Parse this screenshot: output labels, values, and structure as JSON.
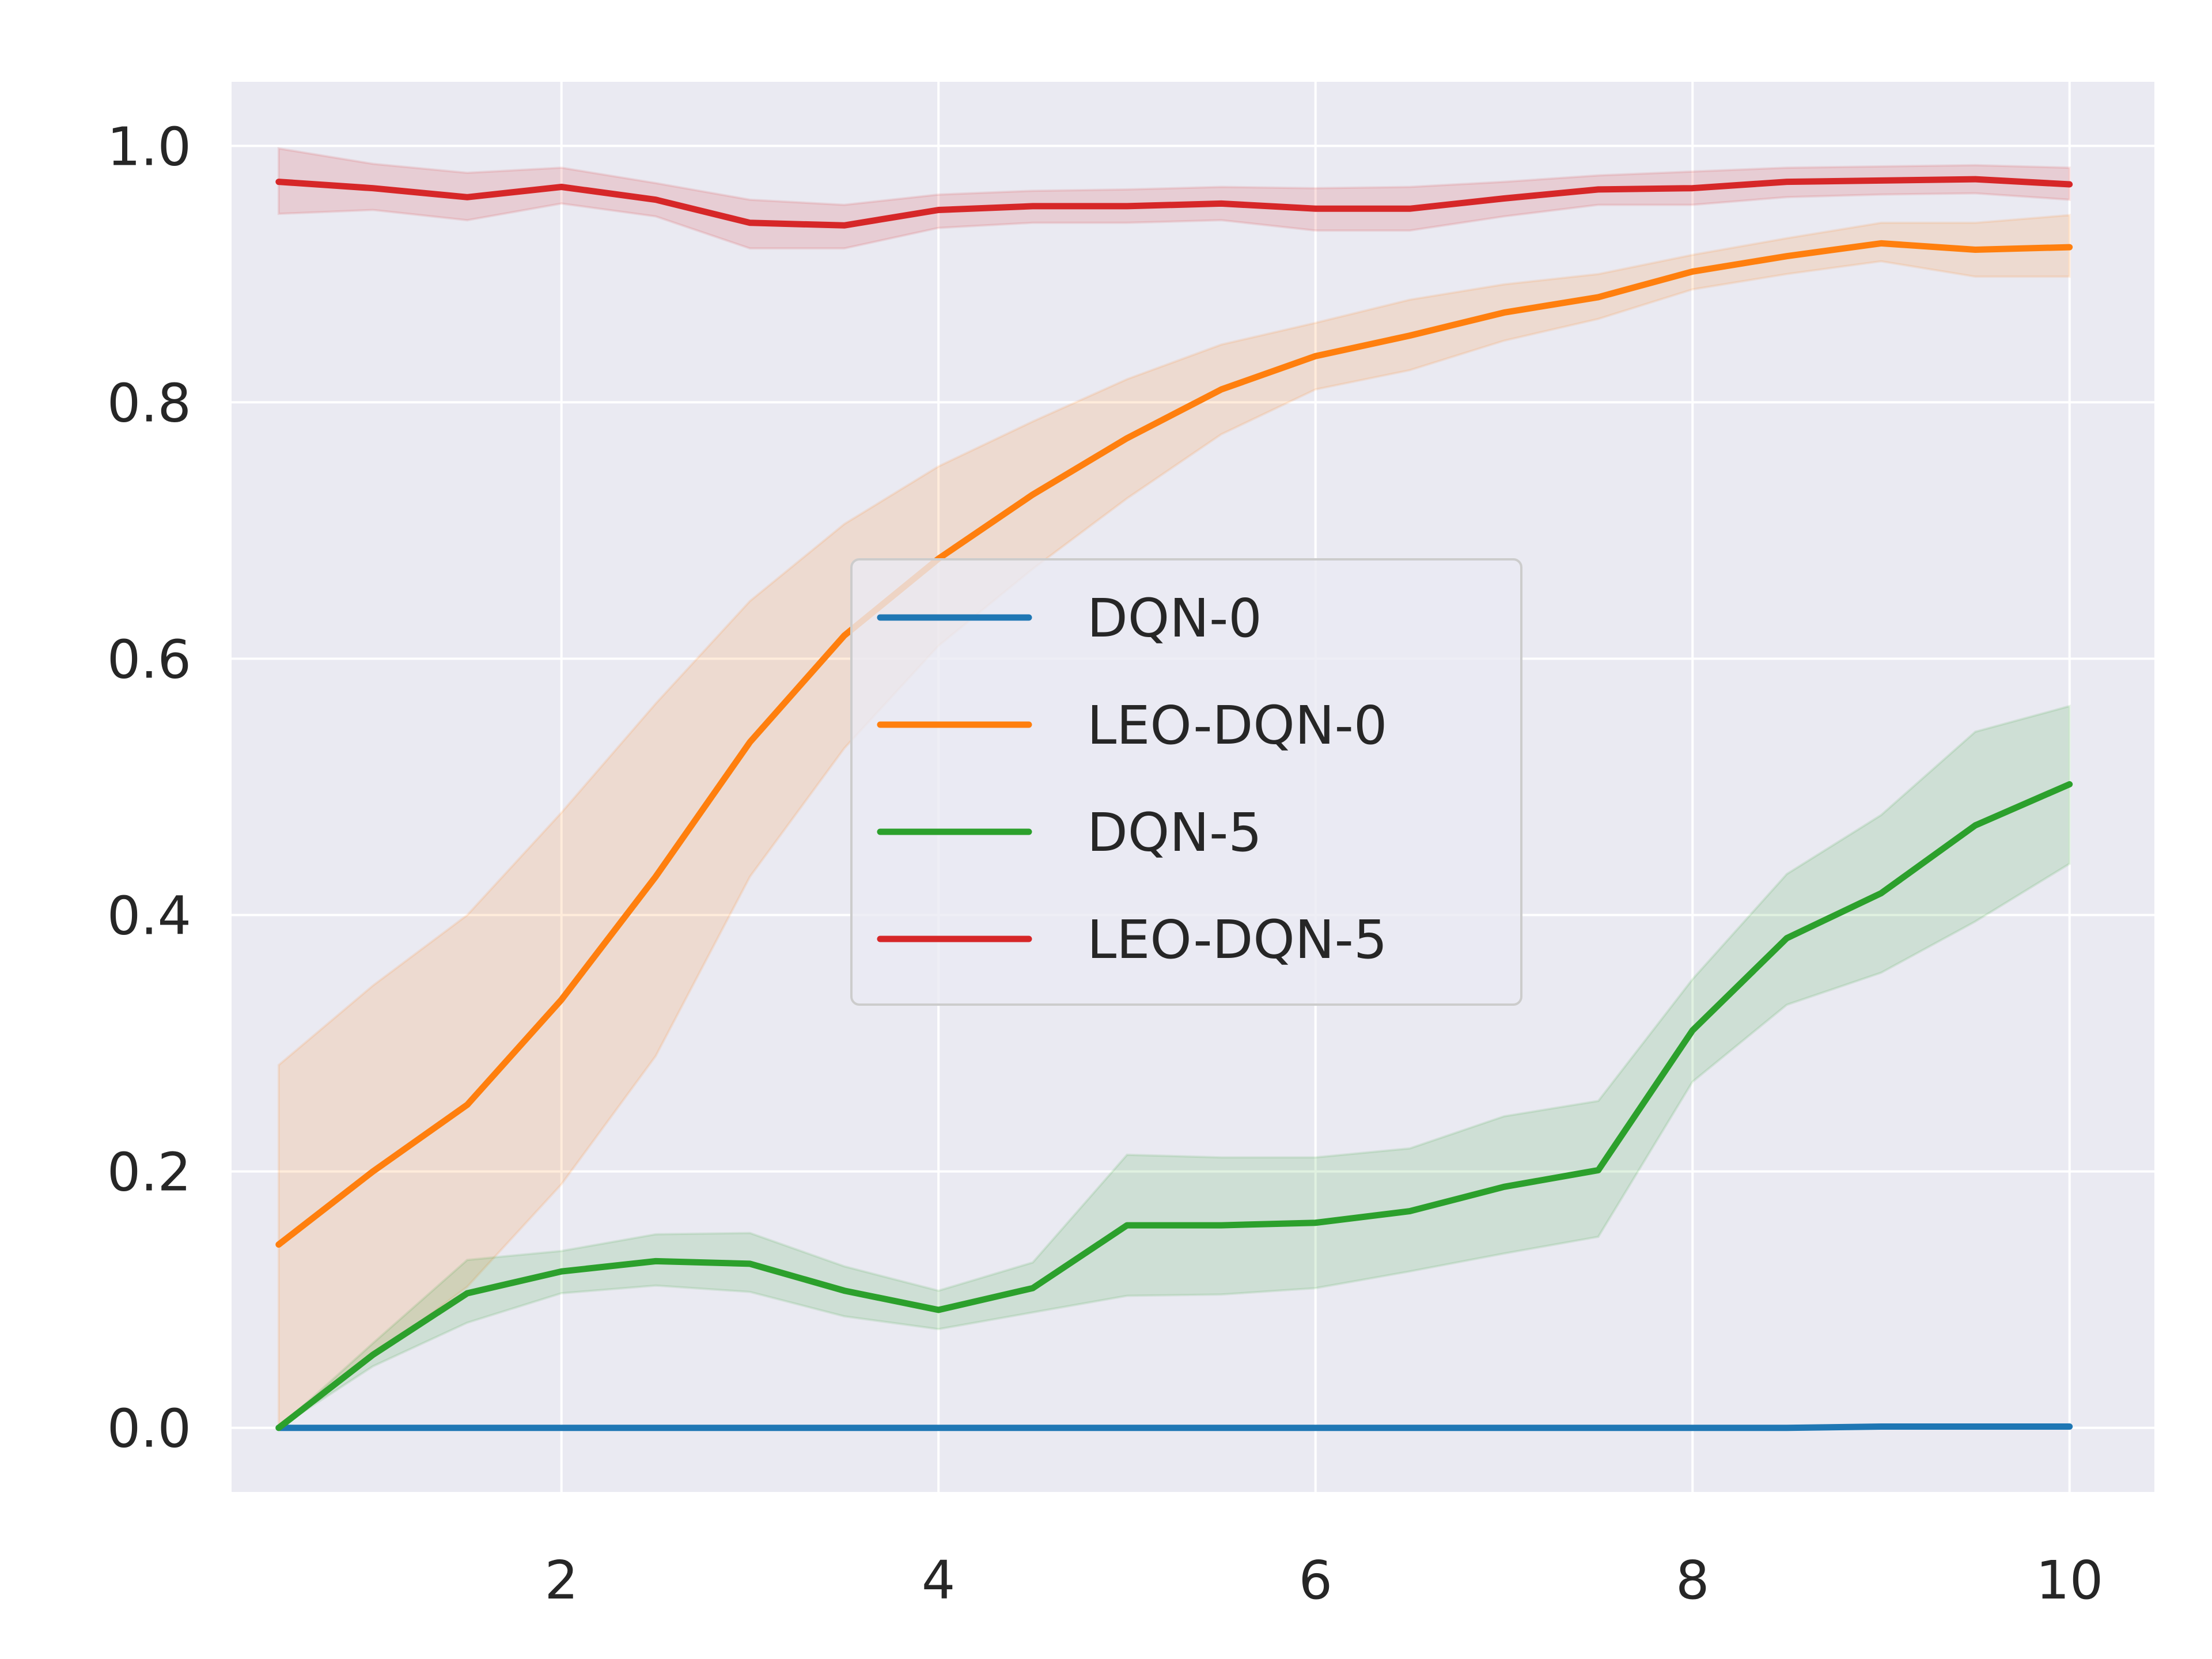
{
  "chart_data": {
    "type": "line",
    "title": "",
    "xlabel": "",
    "ylabel": "",
    "xlim": [
      0.25,
      10.45
    ],
    "ylim": [
      -0.05,
      1.05
    ],
    "xticks": [
      2,
      4,
      6,
      8,
      10
    ],
    "xtick_labels": [
      "2",
      "4",
      "6",
      "8",
      "10"
    ],
    "yticks": [
      0.0,
      0.2,
      0.4,
      0.6,
      0.8,
      1.0
    ],
    "ytick_labels": [
      "0.0",
      "0.2",
      "0.4",
      "0.6",
      "0.8",
      "1.0"
    ],
    "grid": true,
    "legend_position": "center",
    "background": "#eaeaf2",
    "x": [
      0.5,
      1.0,
      1.5,
      2.0,
      2.5,
      3.0,
      3.5,
      4.0,
      4.5,
      5.0,
      5.5,
      6.0,
      6.5,
      7.0,
      7.5,
      8.0,
      8.5,
      9.0,
      9.5,
      10.0
    ],
    "series": [
      {
        "name": "DQN-0",
        "color": "#1f77b4",
        "values": [
          0,
          0,
          0,
          0,
          0,
          0,
          0,
          0,
          0,
          0,
          0,
          0,
          0,
          0,
          0,
          0,
          0,
          0.001,
          0.001,
          0.001
        ],
        "lower": [
          0,
          0,
          0,
          0,
          0,
          0,
          0,
          0,
          0,
          0,
          0,
          0,
          0,
          0,
          0,
          0,
          0,
          0,
          0,
          0
        ],
        "upper": [
          0,
          0,
          0,
          0,
          0,
          0,
          0,
          0,
          0,
          0,
          0,
          0,
          0,
          0,
          0,
          0,
          0,
          0.002,
          0.002,
          0.002
        ]
      },
      {
        "name": "LEO-DQN-0",
        "color": "#ff7f0e",
        "values": [
          0.143,
          0.2,
          0.252,
          0.334,
          0.43,
          0.535,
          0.618,
          0.678,
          0.728,
          0.772,
          0.81,
          0.836,
          0.852,
          0.87,
          0.882,
          0.902,
          0.914,
          0.924,
          0.919,
          0.921
        ],
        "lower": [
          0.0,
          0.055,
          0.11,
          0.19,
          0.29,
          0.43,
          0.53,
          0.61,
          0.67,
          0.725,
          0.775,
          0.81,
          0.825,
          0.848,
          0.865,
          0.888,
          0.9,
          0.91,
          0.898,
          0.898
        ],
        "upper": [
          0.283,
          0.345,
          0.4,
          0.48,
          0.565,
          0.645,
          0.705,
          0.75,
          0.785,
          0.818,
          0.845,
          0.862,
          0.88,
          0.892,
          0.9,
          0.915,
          0.928,
          0.94,
          0.94,
          0.946
        ]
      },
      {
        "name": "DQN-5",
        "color": "#2ca02c",
        "values": [
          0.0,
          0.057,
          0.105,
          0.122,
          0.13,
          0.128,
          0.107,
          0.092,
          0.109,
          0.158,
          0.158,
          0.16,
          0.169,
          0.188,
          0.201,
          0.31,
          0.382,
          0.417,
          0.47,
          0.502
        ],
        "lower": [
          0.0,
          0.048,
          0.082,
          0.105,
          0.111,
          0.106,
          0.087,
          0.077,
          0.09,
          0.103,
          0.104,
          0.109,
          0.122,
          0.136,
          0.149,
          0.27,
          0.33,
          0.355,
          0.395,
          0.44
        ],
        "upper": [
          0.0,
          0.066,
          0.131,
          0.138,
          0.151,
          0.152,
          0.126,
          0.107,
          0.129,
          0.213,
          0.211,
          0.211,
          0.218,
          0.243,
          0.255,
          0.35,
          0.432,
          0.478,
          0.543,
          0.563
        ]
      },
      {
        "name": "LEO-DQN-5",
        "color": "#d62728",
        "values": [
          0.972,
          0.967,
          0.96,
          0.968,
          0.958,
          0.94,
          0.938,
          0.95,
          0.953,
          0.953,
          0.955,
          0.951,
          0.951,
          0.959,
          0.966,
          0.967,
          0.972,
          0.973,
          0.974,
          0.97
        ],
        "lower": [
          0.947,
          0.95,
          0.942,
          0.955,
          0.945,
          0.92,
          0.92,
          0.936,
          0.94,
          0.94,
          0.942,
          0.934,
          0.934,
          0.945,
          0.954,
          0.954,
          0.96,
          0.962,
          0.963,
          0.958
        ],
        "upper": [
          0.998,
          0.986,
          0.979,
          0.983,
          0.971,
          0.958,
          0.954,
          0.962,
          0.965,
          0.966,
          0.968,
          0.967,
          0.968,
          0.972,
          0.977,
          0.98,
          0.983,
          0.984,
          0.985,
          0.983
        ]
      }
    ]
  }
}
